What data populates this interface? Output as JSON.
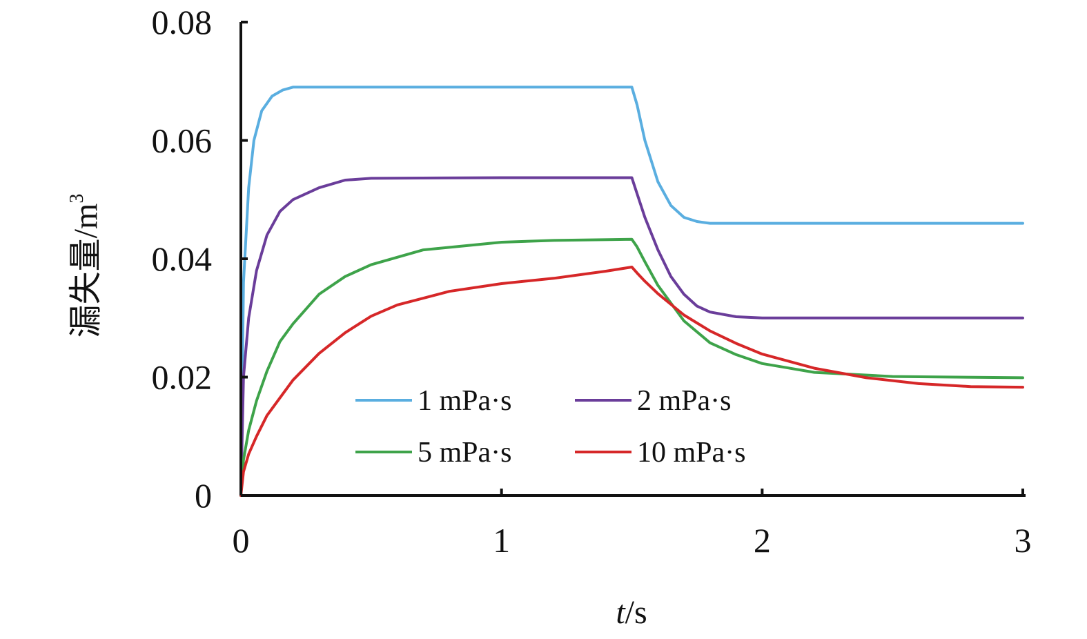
{
  "chart_data": {
    "type": "line",
    "xlabel_italic": "t",
    "xlabel_unit": "/s",
    "ylabel": "漏失量/m",
    "ylabel_sup": "3",
    "xlim": [
      0,
      3
    ],
    "ylim": [
      0,
      0.08
    ],
    "x_ticks": [
      0,
      1,
      2,
      3
    ],
    "x_tick_labels": [
      "0",
      "1",
      "2",
      "3"
    ],
    "y_ticks": [
      0,
      0.02,
      0.04,
      0.06,
      0.08
    ],
    "y_tick_labels": [
      "0",
      "0.02",
      "0.04",
      "0.06",
      "0.08"
    ],
    "grid": false,
    "legend_position": "lower-center",
    "series": [
      {
        "name": "1 mPa·s",
        "color": "#5aaee0",
        "x": [
          0,
          0.01,
          0.03,
          0.05,
          0.08,
          0.12,
          0.16,
          0.2,
          0.3,
          0.5,
          1.0,
          1.5,
          1.52,
          1.55,
          1.6,
          1.65,
          1.7,
          1.75,
          1.8,
          1.9,
          2.0,
          2.5,
          3.0
        ],
        "y": [
          0.0,
          0.036,
          0.052,
          0.06,
          0.065,
          0.0675,
          0.0685,
          0.069,
          0.069,
          0.069,
          0.069,
          0.069,
          0.066,
          0.06,
          0.053,
          0.049,
          0.047,
          0.0463,
          0.046,
          0.046,
          0.046,
          0.046,
          0.046
        ]
      },
      {
        "name": "2 mPa·s",
        "color": "#6a3d9a",
        "x": [
          0,
          0.01,
          0.03,
          0.06,
          0.1,
          0.15,
          0.2,
          0.3,
          0.4,
          0.5,
          1.0,
          1.5,
          1.52,
          1.55,
          1.6,
          1.65,
          1.7,
          1.75,
          1.8,
          1.9,
          2.0,
          2.5,
          3.0
        ],
        "y": [
          0.0,
          0.02,
          0.03,
          0.038,
          0.044,
          0.048,
          0.05,
          0.052,
          0.0533,
          0.0536,
          0.0537,
          0.0537,
          0.051,
          0.047,
          0.0415,
          0.037,
          0.034,
          0.032,
          0.031,
          0.0302,
          0.03,
          0.03,
          0.03
        ]
      },
      {
        "name": "5 mPa·s",
        "color": "#3ea34a",
        "x": [
          0,
          0.01,
          0.03,
          0.06,
          0.1,
          0.15,
          0.2,
          0.3,
          0.4,
          0.5,
          0.7,
          1.0,
          1.2,
          1.5,
          1.52,
          1.55,
          1.6,
          1.7,
          1.8,
          1.9,
          2.0,
          2.2,
          2.5,
          3.0
        ],
        "y": [
          0.0,
          0.006,
          0.011,
          0.016,
          0.021,
          0.026,
          0.029,
          0.034,
          0.037,
          0.039,
          0.0415,
          0.0428,
          0.0431,
          0.0433,
          0.042,
          0.0395,
          0.0355,
          0.0295,
          0.0258,
          0.0238,
          0.0223,
          0.0208,
          0.0201,
          0.0199
        ]
      },
      {
        "name": "10 mPa·s",
        "color": "#d62728",
        "x": [
          0,
          0.01,
          0.03,
          0.06,
          0.1,
          0.2,
          0.3,
          0.4,
          0.5,
          0.6,
          0.8,
          1.0,
          1.2,
          1.4,
          1.5,
          1.52,
          1.55,
          1.6,
          1.7,
          1.8,
          1.9,
          2.0,
          2.2,
          2.4,
          2.6,
          2.8,
          3.0
        ],
        "y": [
          0.0,
          0.004,
          0.007,
          0.01,
          0.0135,
          0.0195,
          0.024,
          0.0275,
          0.0303,
          0.0322,
          0.0345,
          0.0358,
          0.0367,
          0.0379,
          0.0386,
          0.0376,
          0.0362,
          0.0341,
          0.0305,
          0.0278,
          0.0257,
          0.0239,
          0.0215,
          0.0199,
          0.0189,
          0.0184,
          0.0183
        ]
      }
    ]
  }
}
